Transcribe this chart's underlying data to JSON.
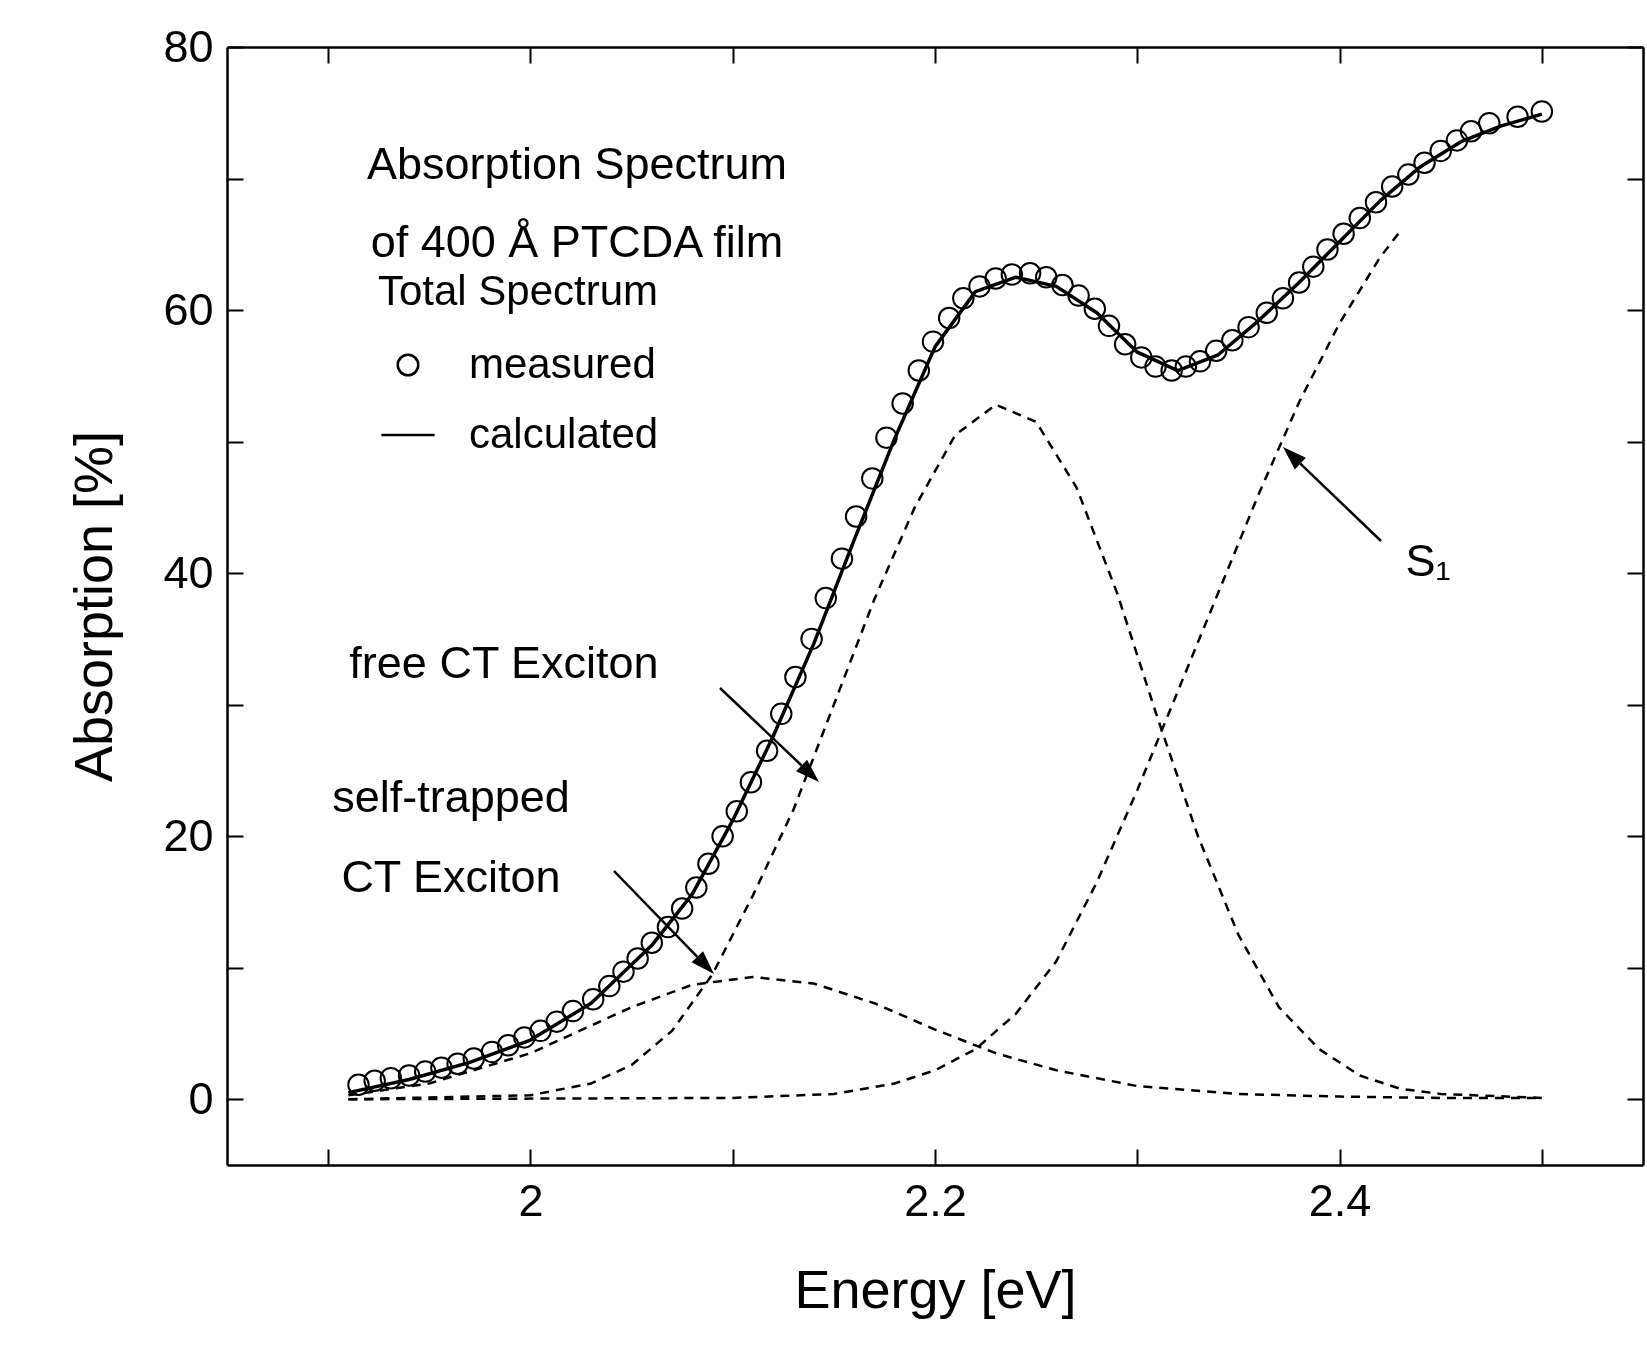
{
  "chart_data": {
    "type": "line",
    "title": "Absorption Spectrum\nof 400 Å PTCDA film",
    "xlabel": "Energy [eV]",
    "ylabel": "Absorption [%]",
    "legend_title": "Total Spectrum",
    "legend": "top left",
    "xlim": [
      1.85,
      2.55
    ],
    "xticks": [
      {
        "value": 1.9,
        "label": null
      },
      2.0,
      {
        "value": 2.1,
        "label": null
      },
      2.2,
      {
        "value": 2.3,
        "label": null
      },
      2.4,
      {
        "value": 2.5,
        "label": null
      }
    ],
    "ylim": [
      -5,
      80
    ],
    "yticks": [
      0,
      {
        "value": 10,
        "label": null
      },
      20,
      {
        "value": 30,
        "label": null
      },
      40,
      {
        "value": 50,
        "label": null
      },
      60,
      {
        "value": 70,
        "label": null
      },
      80
    ],
    "annotations": [
      "free CT Exciton",
      "self-trapped\nCT Exciton",
      "S₁"
    ],
    "series": [
      {
        "name": "measured",
        "type": "scatter",
        "marker": "circle",
        "color": "#000000",
        "x": [
          1.915,
          1.923,
          1.931,
          1.94,
          1.948,
          1.956,
          1.964,
          1.972,
          1.981,
          1.989,
          1.997,
          2.005,
          2.013,
          2.021,
          2.031,
          2.039,
          2.046,
          2.053,
          2.06,
          2.068,
          2.075,
          2.082,
          2.088,
          2.095,
          2.102,
          2.109,
          2.117,
          2.124,
          2.131,
          2.139,
          2.146,
          2.154,
          2.161,
          2.169,
          2.176,
          2.184,
          2.192,
          2.199,
          2.207,
          2.214,
          2.222,
          2.23,
          2.238,
          2.247,
          2.255,
          2.263,
          2.271,
          2.279,
          2.286,
          2.294,
          2.302,
          2.309,
          2.317,
          2.324,
          2.331,
          2.339,
          2.347,
          2.355,
          2.364,
          2.372,
          2.38,
          2.387,
          2.394,
          2.402,
          2.41,
          2.418,
          2.426,
          2.434,
          2.442,
          2.45,
          2.458,
          2.465,
          2.474,
          2.488,
          2.5
        ],
        "values": [
          1.1,
          1.4,
          1.6,
          1.8,
          2.1,
          2.4,
          2.7,
          3.1,
          3.6,
          4.1,
          4.7,
          5.2,
          5.9,
          6.7,
          7.6,
          8.6,
          9.7,
          10.7,
          11.9,
          13.1,
          14.5,
          16.1,
          17.9,
          20,
          21.9,
          24.1,
          26.5,
          29.3,
          32.1,
          35,
          38.1,
          41.1,
          44.3,
          47.2,
          50.3,
          52.9,
          55.4,
          57.6,
          59.4,
          60.9,
          61.8,
          62.4,
          62.7,
          62.8,
          62.5,
          61.9,
          61.1,
          60.1,
          58.8,
          57.4,
          56.4,
          55.7,
          55.4,
          55.7,
          56.1,
          56.9,
          57.7,
          58.7,
          59.8,
          60.9,
          62.1,
          63.3,
          64.6,
          65.8,
          67,
          68.2,
          69.4,
          70.3,
          71.2,
          72.1,
          72.9,
          73.6,
          74.2,
          74.7,
          75.1
        ]
      },
      {
        "name": "calculated",
        "color": "#000000",
        "line_style": "solid",
        "x": [
          1.91,
          1.94,
          1.97,
          2.0,
          2.03,
          2.06,
          2.08,
          2.1,
          2.12,
          2.14,
          2.16,
          2.18,
          2.2,
          2.22,
          2.24,
          2.26,
          2.28,
          2.3,
          2.32,
          2.34,
          2.36,
          2.38,
          2.4,
          2.42,
          2.44,
          2.46,
          2.48,
          2.5
        ],
        "values": [
          0.5,
          1.5,
          2.8,
          4.5,
          7.3,
          11.7,
          15.6,
          21.2,
          27.6,
          34.6,
          42.5,
          50.2,
          57.2,
          61.4,
          62.5,
          61.8,
          59.8,
          56.8,
          55.4,
          56.6,
          59.2,
          62.1,
          65.2,
          68.3,
          70.9,
          72.8,
          74,
          74.9
        ]
      },
      {
        "type": "line",
        "color": "#000000",
        "line_style": "dashed",
        "x": [
          1.91,
          1.95,
          2.0,
          2.05,
          2.08,
          2.11,
          2.14,
          2.17,
          2.2,
          2.23,
          2.26,
          2.3,
          2.35,
          2.4,
          2.45,
          2.5
        ],
        "values": [
          0.3,
          1.2,
          3.5,
          7,
          8.7,
          9.3,
          8.8,
          7.3,
          5.3,
          3.5,
          2.2,
          1,
          0.4,
          0.2,
          0.1,
          0.1
        ]
      },
      {
        "type": "line",
        "color": "#000000",
        "line_style": "dashed",
        "x": [
          1.91,
          2.0,
          2.03,
          2.05,
          2.07,
          2.09,
          2.11,
          2.13,
          2.15,
          2.17,
          2.19,
          2.21,
          2.23,
          2.25,
          2.27,
          2.29,
          2.31,
          2.33,
          2.35,
          2.37,
          2.39,
          2.41,
          2.43,
          2.45,
          2.5
        ],
        "values": [
          0,
          0.3,
          1.2,
          2.6,
          5.2,
          9.5,
          15.5,
          22,
          30,
          38,
          45,
          50.5,
          52.8,
          51.5,
          46.5,
          38.5,
          29,
          20,
          12.5,
          7,
          3.8,
          1.8,
          0.8,
          0.4,
          0.1
        ]
      },
      {
        "type": "line",
        "color": "#000000",
        "line_style": "dashed",
        "x": [
          1.91,
          2.1,
          2.15,
          2.18,
          2.2,
          2.22,
          2.24,
          2.26,
          2.28,
          2.3,
          2.32,
          2.34,
          2.36,
          2.38,
          2.4,
          2.42,
          2.43
        ],
        "values": [
          0,
          0.1,
          0.4,
          1.2,
          2.2,
          3.8,
          6.5,
          10.5,
          16.5,
          23.5,
          31,
          38.5,
          46,
          53,
          59,
          64,
          66
        ]
      }
    ]
  }
}
